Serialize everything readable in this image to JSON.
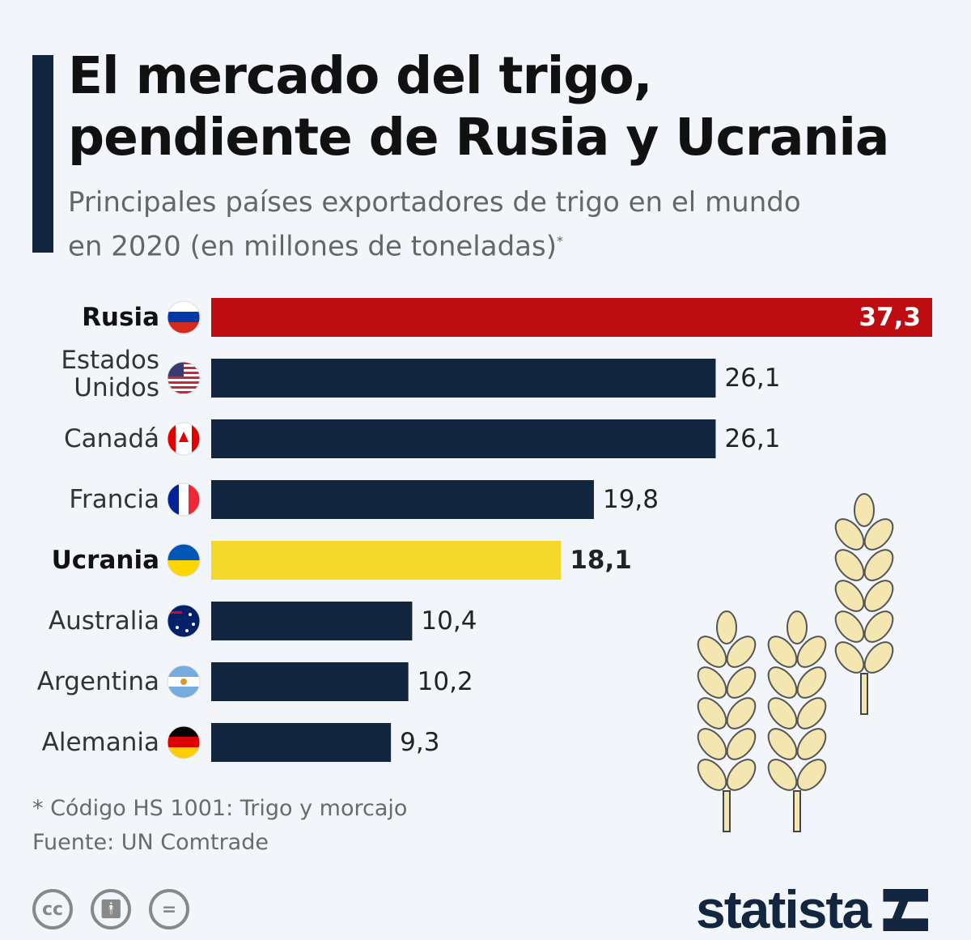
{
  "title_line1": "El mercado del trigo,",
  "title_line2": "pendiente de Rusia y Ucrania",
  "subtitle_line1": "Principales países exportadores de trigo en el mundo",
  "subtitle_line2": "en 2020 (en millones de toneladas)",
  "subtitle_mark": "*",
  "footnote": "* Código HS 1001: Trigo y morcajo",
  "source": "Fuente: UN Comtrade",
  "brand": "statista",
  "license_icons": [
    "cc-icon",
    "attribution-icon",
    "no-derivatives-icon"
  ],
  "colors": {
    "default": "#13263f",
    "Rusia": "#bd0d12",
    "Ucrania": "#f5d92a",
    "background": "#f2f6fa"
  },
  "chart_data": {
    "type": "bar",
    "orientation": "horizontal",
    "categories": [
      "Rusia",
      "Estados Unidos",
      "Canadá",
      "Francia",
      "Ucrania",
      "Australia",
      "Argentina",
      "Alemania"
    ],
    "values": [
      37.3,
      26.1,
      26.1,
      19.8,
      18.1,
      10.4,
      10.2,
      9.3
    ],
    "data_labels": [
      "37,3",
      "26,1",
      "26,1",
      "19,8",
      "18,1",
      "10,4",
      "10,2",
      "9,3"
    ],
    "highlighted": [
      "Rusia",
      "Ucrania"
    ],
    "flags": [
      "russia-flag-icon",
      "usa-flag-icon",
      "canada-flag-icon",
      "france-flag-icon",
      "ukraine-flag-icon",
      "australia-flag-icon",
      "argentina-flag-icon",
      "germany-flag-icon"
    ],
    "xlim": [
      0,
      37.3
    ],
    "grid": false,
    "legend": "none"
  }
}
